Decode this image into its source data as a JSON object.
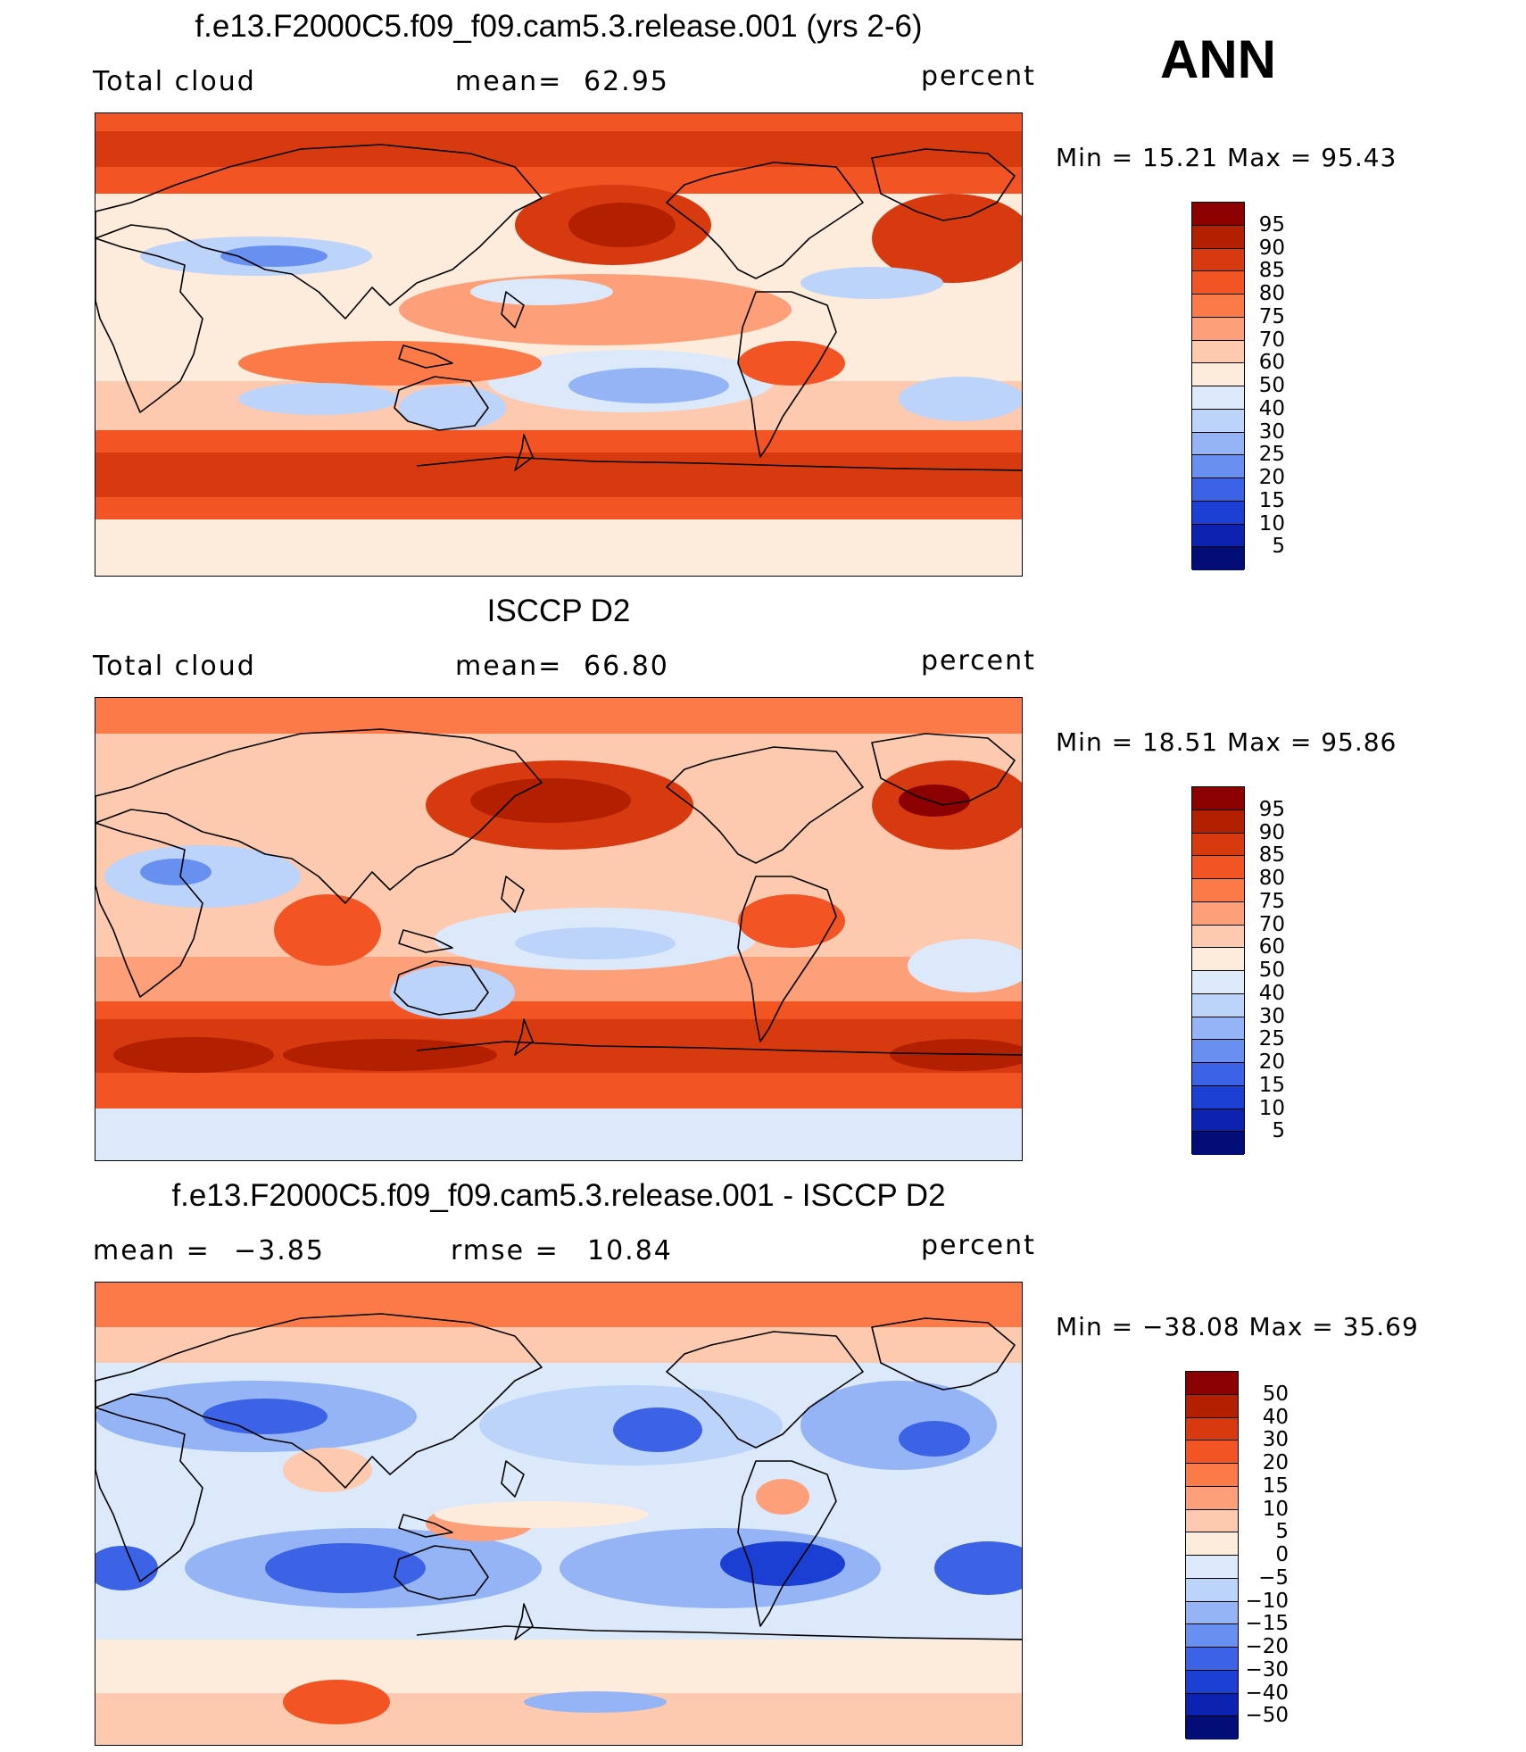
{
  "season": "ANN",
  "panels": [
    {
      "title": "f.e13.F2000C5.f09_f09.cam5.3.release.001 (yrs 2-6)",
      "left_label": "Total cloud",
      "stat_label": "mean=",
      "stat_value": "62.95",
      "units": "percent",
      "min_label": "Min",
      "min_value": "15.21",
      "max_label": "Max",
      "max_value": "95.43"
    },
    {
      "title": "ISCCP D2",
      "left_label": "Total cloud",
      "stat_label": "mean=",
      "stat_value": "66.80",
      "units": "percent",
      "min_label": "Min",
      "min_value": "18.51",
      "max_label": "Max",
      "max_value": "95.86"
    },
    {
      "title": "f.e13.F2000C5.f09_f09.cam5.3.release.001 - ISCCP D2",
      "left_label": "mean  =",
      "left_value": "−3.85",
      "stat_label": "rmse  =",
      "stat_value": "10.84",
      "units": "percent",
      "min_label": "Min",
      "min_value": "−38.08",
      "max_label": "Max",
      "max_value": "35.69"
    }
  ],
  "colorbars": {
    "abs": {
      "labels": [
        "95",
        "90",
        "85",
        "80",
        "75",
        "70",
        "60",
        "50",
        "40",
        "30",
        "25",
        "20",
        "15",
        "10",
        "5"
      ],
      "colors": [
        "#8b0000",
        "#b22000",
        "#d83a10",
        "#f25424",
        "#fb7a48",
        "#fd9f78",
        "#fdcab0",
        "#fdebdc",
        "#dce9fb",
        "#bcd3fa",
        "#94b4f6",
        "#6790f0",
        "#3c63e6",
        "#1a3fd2",
        "#0c22b0",
        "#030d78"
      ]
    },
    "diff": {
      "labels": [
        "50",
        "40",
        "30",
        "20",
        "15",
        "10",
        "5",
        "0",
        "−5",
        "−10",
        "−15",
        "−20",
        "−30",
        "−40",
        "−50"
      ],
      "colors": [
        "#8b0000",
        "#b22000",
        "#d83a10",
        "#f25424",
        "#fb7a48",
        "#fd9f78",
        "#fdcab0",
        "#fdebdc",
        "#dce9fb",
        "#bcd3fa",
        "#94b4f6",
        "#6790f0",
        "#3c63e6",
        "#1a3fd2",
        "#0c22b0",
        "#030d78"
      ]
    }
  }
}
